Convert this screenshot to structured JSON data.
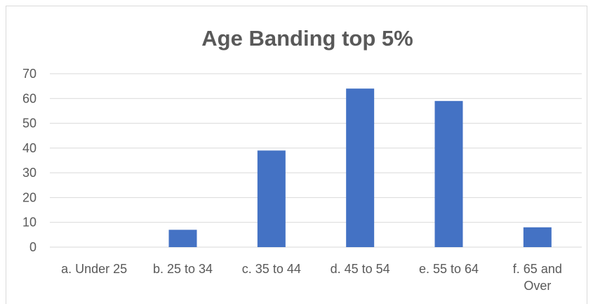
{
  "chart_data": {
    "type": "bar",
    "title": "Age Banding top 5%",
    "categories": [
      [
        "a. Under 25"
      ],
      [
        "b. 25 to 34"
      ],
      [
        "c. 35 to 44"
      ],
      [
        "d. 45 to 54"
      ],
      [
        "e. 55 to 64"
      ],
      [
        "f. 65 and",
        "Over"
      ]
    ],
    "values": [
      0,
      7,
      39,
      64,
      59,
      8
    ],
    "ylim": [
      0,
      70
    ],
    "yticks": [
      0,
      10,
      20,
      30,
      40,
      50,
      60,
      70
    ],
    "grid": true,
    "legend": "none",
    "bar_color": "#4472c4",
    "grid_color": "#d9d9d9",
    "text_color": "#595959"
  }
}
